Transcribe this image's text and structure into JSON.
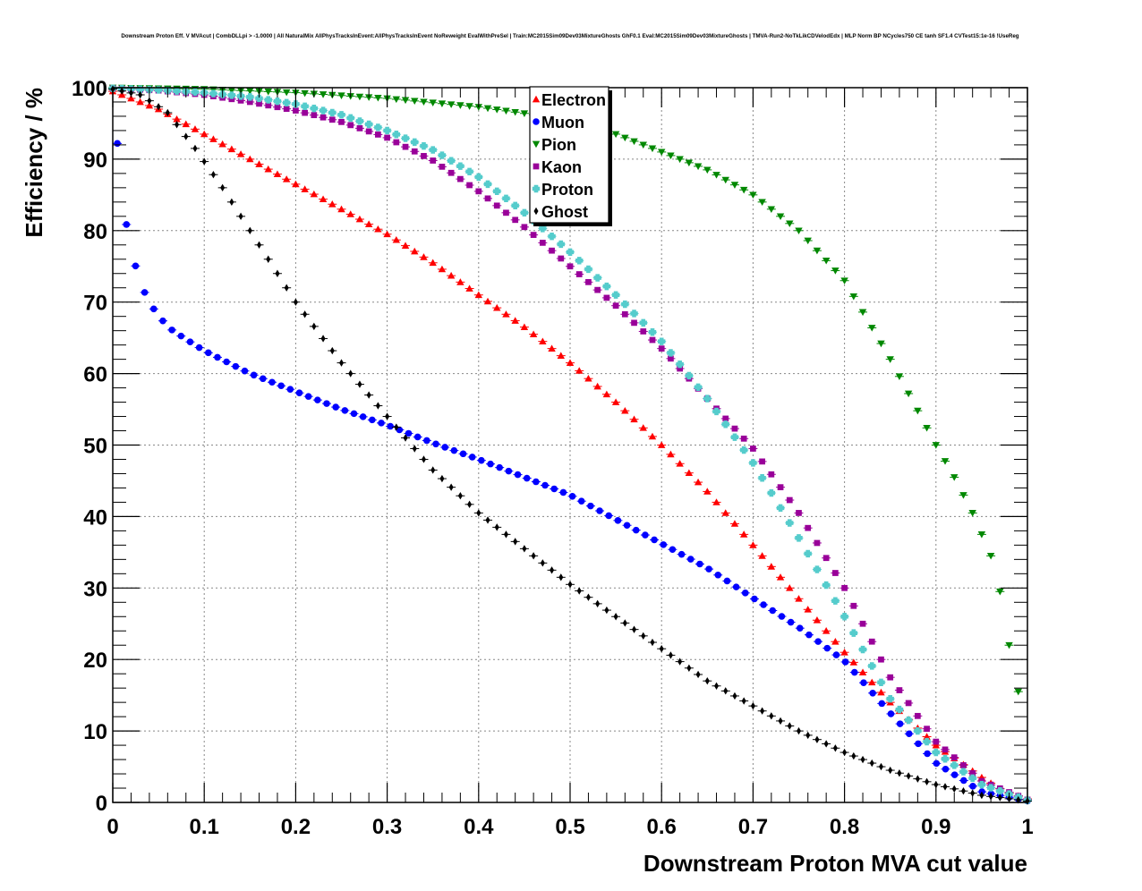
{
  "chart_data": {
    "type": "scatter",
    "title": "Downstream Proton Eff. V MVAcut | CombDLLpi > -1.0000 | All NaturalMix AllPhysTracksInEvent:AllPhysTracksInEvent NoReweight EvalWithPreSel | Train:MC2015Sim09Dev03MixtureGhosts GhF0.1 Eval:MC2015Sim09Dev03MixtureGhosts | TMVA-Run2-NoTkLikCDVelodEdx | MLP Norm BP NCycles750 CE tanh SF1.4 CVTest15:1e-16 !UseReg",
    "xlabel": "Downstream Proton MVA cut value",
    "ylabel": "Efficiency / %",
    "xlim": [
      0,
      1
    ],
    "ylim": [
      0,
      100
    ],
    "grid": true,
    "legend_position": "top-center",
    "x_ticks": [
      "0",
      "0.1",
      "0.2",
      "0.3",
      "0.4",
      "0.5",
      "0.6",
      "0.7",
      "0.8",
      "0.9",
      "1"
    ],
    "y_ticks": [
      "0",
      "10",
      "20",
      "30",
      "40",
      "50",
      "60",
      "70",
      "80",
      "90",
      "100"
    ],
    "series": [
      {
        "name": "Electron",
        "marker": "triangle-up",
        "color": "#ff0000",
        "x": [
          0,
          0.05,
          0.1,
          0.15,
          0.2,
          0.25,
          0.3,
          0.35,
          0.4,
          0.45,
          0.5,
          0.55,
          0.6,
          0.65,
          0.7,
          0.75,
          0.8,
          0.85,
          0.9,
          0.95,
          0.975,
          1.0
        ],
        "y": [
          99.5,
          97,
          93.5,
          90,
          86.5,
          83,
          79.5,
          75.5,
          71,
          66.5,
          61.5,
          56,
          50,
          43.5,
          36,
          28.5,
          21,
          14,
          8,
          3.5,
          1.5,
          0.5
        ]
      },
      {
        "name": "Muon",
        "marker": "circle",
        "color": "#0000ff",
        "x": [
          0.005,
          0.015,
          0.025,
          0.035,
          0.045,
          0.06,
          0.08,
          0.1,
          0.15,
          0.2,
          0.25,
          0.3,
          0.35,
          0.4,
          0.45,
          0.5,
          0.55,
          0.6,
          0.65,
          0.7,
          0.75,
          0.8,
          0.85,
          0.9,
          0.95,
          1.0
        ],
        "y": [
          92.2,
          80.8,
          75,
          71.3,
          69,
          66.5,
          64.8,
          63.2,
          60,
          57.5,
          55,
          52.8,
          50.3,
          48,
          45.5,
          43,
          39.6,
          36.2,
          32.8,
          28.6,
          24.5,
          19.8,
          12.5,
          5.5,
          1.5,
          0.2
        ]
      },
      {
        "name": "Pion",
        "marker": "triangle-down",
        "color": "#008800",
        "x": [
          0,
          0.1,
          0.2,
          0.3,
          0.4,
          0.5,
          0.55,
          0.6,
          0.65,
          0.7,
          0.75,
          0.8,
          0.85,
          0.9,
          0.92,
          0.94,
          0.96,
          0.97,
          0.98,
          0.99
        ],
        "y": [
          100,
          99.8,
          99.3,
          98.5,
          97.3,
          95.5,
          93.5,
          91,
          88.5,
          85,
          80,
          73,
          62,
          50,
          45.5,
          40.5,
          34.5,
          29.5,
          22,
          15.5
        ]
      },
      {
        "name": "Kaon",
        "marker": "square",
        "color": "#990099",
        "x": [
          0,
          0.05,
          0.1,
          0.15,
          0.2,
          0.25,
          0.3,
          0.35,
          0.4,
          0.45,
          0.5,
          0.55,
          0.6,
          0.65,
          0.7,
          0.75,
          0.8,
          0.85,
          0.9,
          0.95,
          1.0
        ],
        "y": [
          99.9,
          99.6,
          99,
          98,
          96.8,
          95.2,
          93,
          89.8,
          85.5,
          80.5,
          75,
          69.5,
          63.5,
          56.5,
          49.5,
          40.5,
          30,
          17.5,
          8.5,
          3,
          0.4
        ]
      },
      {
        "name": "Proton",
        "marker": "cross",
        "color": "#55cccc",
        "x": [
          0,
          0.05,
          0.1,
          0.15,
          0.2,
          0.25,
          0.3,
          0.35,
          0.4,
          0.45,
          0.5,
          0.55,
          0.6,
          0.65,
          0.7,
          0.75,
          0.8,
          0.85,
          0.9,
          0.95,
          1.0
        ],
        "y": [
          99.9,
          99.7,
          99.3,
          98.7,
          97.7,
          96.2,
          94,
          91.3,
          87.5,
          82.5,
          77,
          71,
          64.5,
          56.5,
          47.5,
          37,
          26,
          14.5,
          7,
          2.5,
          0.3
        ]
      },
      {
        "name": "Ghost",
        "marker": "diamond",
        "color": "#000000",
        "x": [
          0,
          0.03,
          0.06,
          0.09,
          0.12,
          0.15,
          0.2,
          0.25,
          0.3,
          0.35,
          0.4,
          0.45,
          0.5,
          0.55,
          0.6,
          0.65,
          0.7,
          0.75,
          0.8,
          0.85,
          0.9,
          0.95,
          1.0
        ],
        "y": [
          99.8,
          99,
          96.5,
          91.5,
          86,
          80,
          70,
          61.5,
          54,
          46.5,
          40.5,
          35.5,
          30.5,
          26,
          21.5,
          17,
          13.5,
          10,
          7,
          4.5,
          2.5,
          1,
          0.2
        ]
      }
    ]
  }
}
